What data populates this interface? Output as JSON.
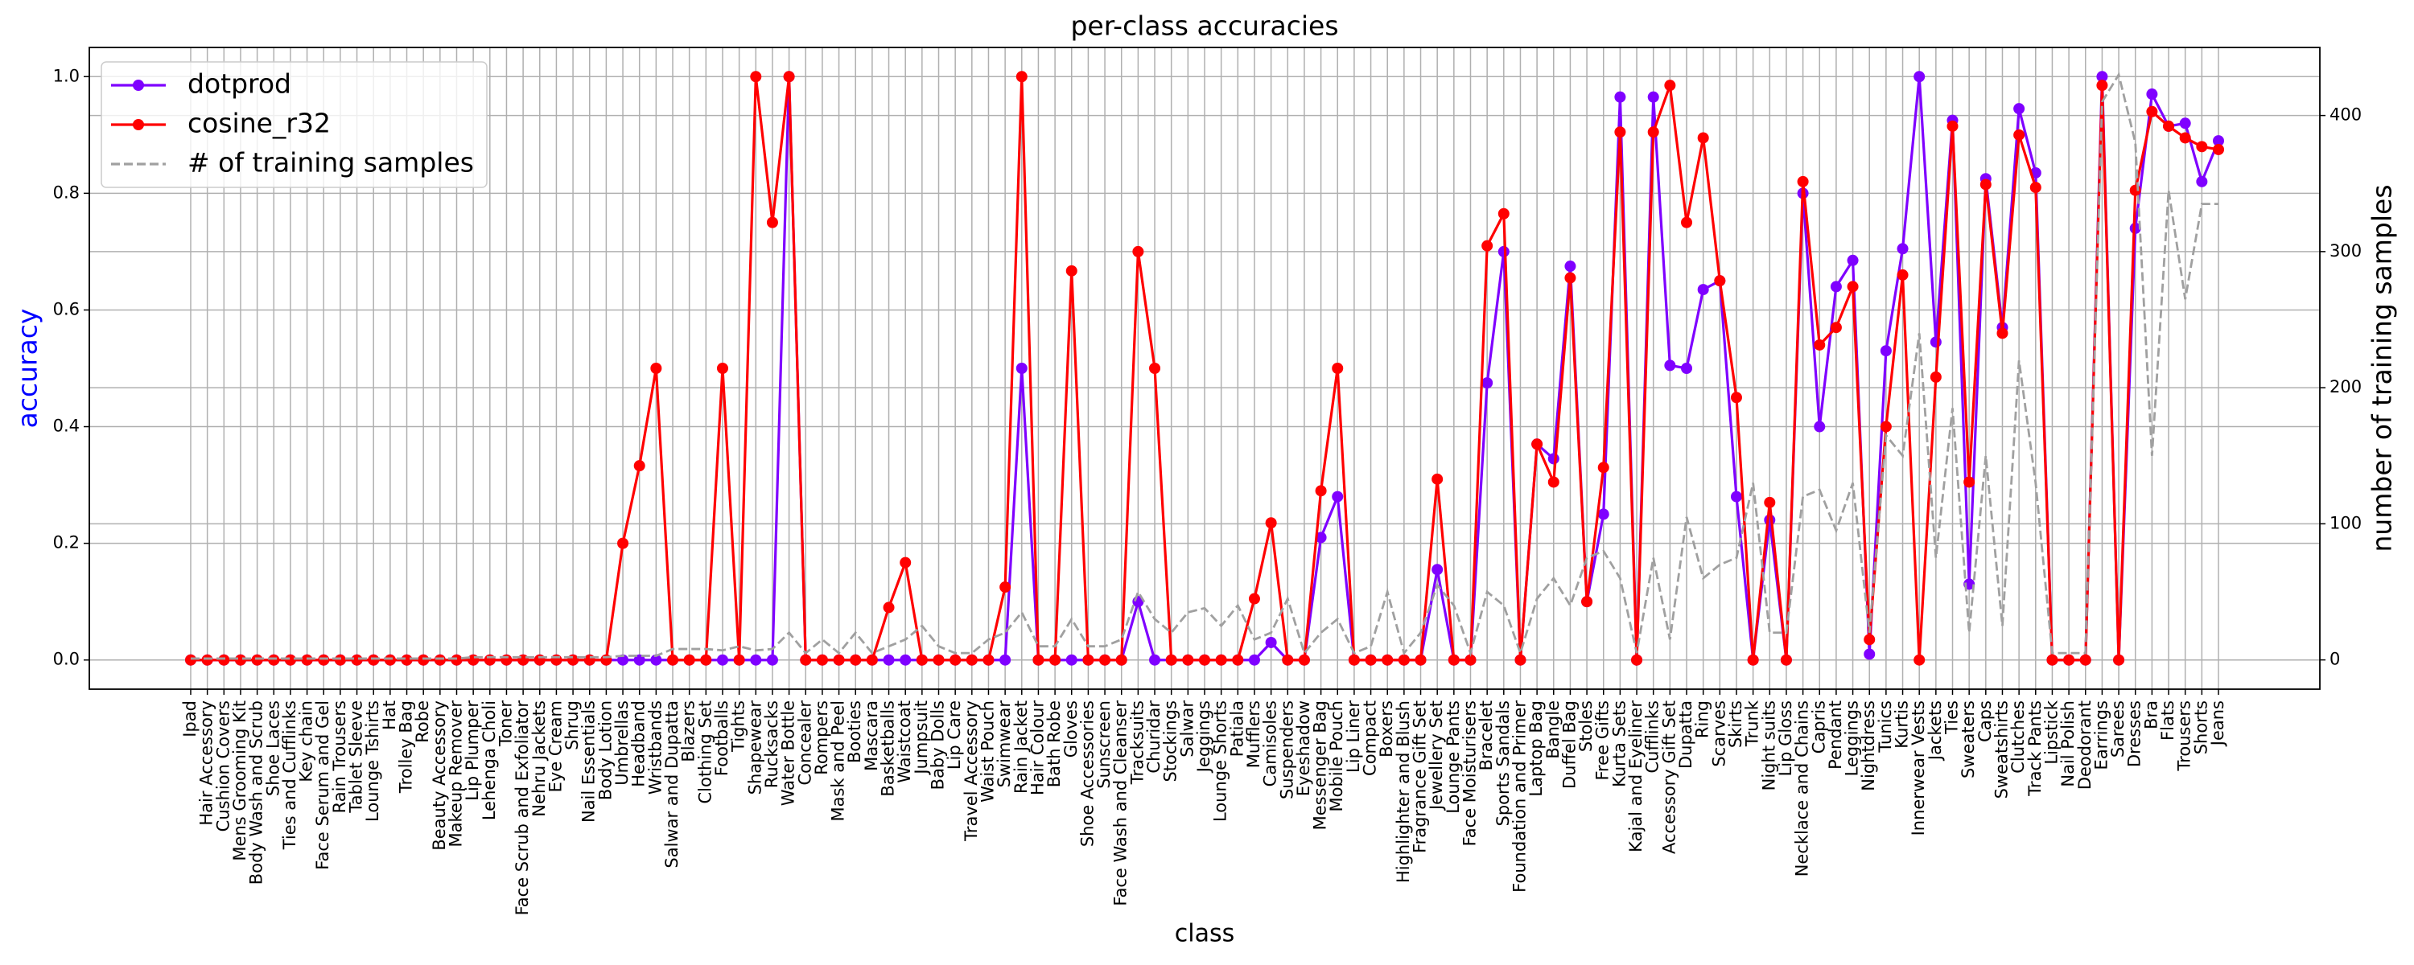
{
  "chart_data": {
    "type": "line",
    "title": "per-class accuracies",
    "xlabel": "class",
    "ylabel": "accuracy",
    "ylabel_color": "blue",
    "y2label": "number of training samples",
    "categories": [
      "Ipad",
      "Hair Accessory",
      "Cushion Covers",
      "Mens Grooming Kit",
      "Body Wash and Scrub",
      "Shoe Laces",
      "Ties and Cufflinks",
      "Key chain",
      "Face Serum and Gel",
      "Rain Trousers",
      "Tablet Sleeve",
      "Lounge Tshirts",
      "Hat",
      "Trolley Bag",
      "Robe",
      "Beauty Accessory",
      "Makeup Remover",
      "Lip Plumper",
      "Lehenga Choli",
      "Toner",
      "Face Scrub and Exfoliator",
      "Nehru Jackets",
      "Eye Cream",
      "Shrug",
      "Nail Essentials",
      "Body Lotion",
      "Umbrellas",
      "Headband",
      "Wristbands",
      "Salwar and Dupatta",
      "Blazers",
      "Clothing Set",
      "Footballs",
      "Tights",
      "Shapewear",
      "Rucksacks",
      "Water Bottle",
      "Concealer",
      "Rompers",
      "Mask and Peel",
      "Booties",
      "Mascara",
      "Basketballs",
      "Waistcoat",
      "Jumpsuit",
      "Baby Dolls",
      "Lip Care",
      "Travel Accessory",
      "Waist Pouch",
      "Swimwear",
      "Rain Jacket",
      "Hair Colour",
      "Bath Robe",
      "Gloves",
      "Shoe Accessories",
      "Sunscreen",
      "Face Wash and Cleanser",
      "Tracksuits",
      "Churidar",
      "Stockings",
      "Salwar",
      "Jeggings",
      "Lounge Shorts",
      "Patiala",
      "Mufflers",
      "Camisoles",
      "Suspenders",
      "Eyeshadow",
      "Messenger Bag",
      "Mobile Pouch",
      "Lip Liner",
      "Compact",
      "Boxers",
      "Highlighter and Blush",
      "Fragrance Gift Set",
      "Jewellery Set",
      "Lounge Pants",
      "Face Moisturisers",
      "Bracelet",
      "Sports Sandals",
      "Foundation and Primer",
      "Laptop Bag",
      "Bangle",
      "Duffel Bag",
      "Stoles",
      "Free Gifts",
      "Kurta Sets",
      "Kajal and Eyeliner",
      "Cufflinks",
      "Accessory Gift Set",
      "Dupatta",
      "Ring",
      "Scarves",
      "Skirts",
      "Trunk",
      "Night suits",
      "Lip Gloss",
      "Necklace and Chains",
      "Capris",
      "Pendant",
      "Leggings",
      "Nightdress",
      "Tunics",
      "Kurtis",
      "Innerwear Vests",
      "Jackets",
      "Ties",
      "Sweaters",
      "Caps",
      "Sweatshirts",
      "Clutches",
      "Track Pants",
      "Lipstick",
      "Nail Polish",
      "Deodorant",
      "Earrings",
      "Sarees",
      "Dresses",
      "Bra",
      "Flats",
      "Trousers",
      "Shorts",
      "Jeans"
    ],
    "series": [
      {
        "name": "dotprod",
        "color": "#7f00ff",
        "marker": "o",
        "linestyle": "solid",
        "axis": "y",
        "values": [
          0,
          0,
          0,
          0,
          0,
          0,
          0,
          0,
          0,
          0,
          0,
          0,
          0,
          0,
          0,
          0,
          0,
          0,
          0,
          0,
          0,
          0,
          0,
          0,
          0,
          0,
          0,
          0,
          0,
          0,
          0,
          0,
          0,
          0,
          0,
          0,
          1.0,
          0,
          0,
          0,
          0,
          0,
          0,
          0,
          0,
          0,
          0,
          0,
          0,
          0,
          0.5,
          0,
          0,
          0,
          0,
          0,
          0,
          0.1,
          0,
          0,
          0,
          0,
          0,
          0,
          0,
          0.03,
          0,
          0,
          0.21,
          0.28,
          0,
          0,
          0,
          0,
          0,
          0.155,
          0,
          0,
          0.475,
          0.7,
          0,
          0.37,
          0.345,
          0.675,
          0.1,
          0.25,
          0.965,
          0,
          0.965,
          0.505,
          0.5,
          0.635,
          0.65,
          0.28,
          0,
          0.24,
          0,
          0.8,
          0.4,
          0.64,
          0.685,
          0.01,
          0.53,
          0.705,
          1.0,
          0.545,
          0.925,
          0.13,
          0.825,
          0.57,
          0.945,
          0.835,
          0,
          0,
          0,
          1.0,
          0,
          0.74,
          0.97,
          0.915,
          0.92,
          0.82,
          0.89
        ]
      },
      {
        "name": "cosine_r32",
        "color": "#ff0000",
        "marker": "o",
        "linestyle": "solid",
        "axis": "y",
        "values": [
          0,
          0,
          0,
          0,
          0,
          0,
          0,
          0,
          0,
          0,
          0,
          0,
          0,
          0,
          0,
          0,
          0,
          0,
          0,
          0,
          0,
          0,
          0,
          0,
          0,
          0,
          0.2,
          0.333,
          0.5,
          0,
          0,
          0,
          0.5,
          0,
          1.0,
          0.75,
          1.0,
          0,
          0,
          0,
          0,
          0,
          0.09,
          0.167,
          0,
          0,
          0,
          0,
          0,
          0.125,
          1.0,
          0,
          0,
          0.667,
          0,
          0,
          0,
          0.7,
          0.5,
          0,
          0,
          0,
          0,
          0,
          0.105,
          0.235,
          0,
          0,
          0.29,
          0.5,
          0,
          0,
          0,
          0,
          0,
          0.31,
          0,
          0,
          0.71,
          0.765,
          0,
          0.37,
          0.305,
          0.655,
          0.1,
          0.33,
          0.905,
          0,
          0.905,
          0.985,
          0.75,
          0.895,
          0.65,
          0.45,
          0,
          0.27,
          0,
          0.82,
          0.54,
          0.57,
          0.64,
          0.035,
          0.4,
          0.66,
          0,
          0.485,
          0.915,
          0.305,
          0.815,
          0.56,
          0.9,
          0.81,
          0,
          0,
          0,
          0.985,
          0,
          0.805,
          0.94,
          0.915,
          0.895,
          0.88,
          0.875
        ]
      },
      {
        "name": "# of training samples",
        "color": "#a0a0a0",
        "marker": "none",
        "linestyle": "dashed",
        "axis": "y2",
        "values": [
          1,
          1,
          1,
          1,
          1,
          1,
          1,
          1,
          1,
          1,
          1,
          1,
          1,
          1,
          1,
          1,
          1,
          2,
          2,
          2,
          2,
          2,
          2,
          2,
          2,
          2,
          3,
          3,
          3,
          8,
          8,
          8,
          7,
          10,
          7,
          8,
          20,
          5,
          15,
          5,
          20,
          5,
          10,
          15,
          25,
          10,
          5,
          5,
          15,
          20,
          35,
          10,
          10,
          30,
          10,
          10,
          15,
          50,
          30,
          20,
          35,
          38,
          25,
          40,
          15,
          20,
          45,
          5,
          20,
          30,
          5,
          10,
          50,
          5,
          20,
          55,
          40,
          5,
          50,
          40,
          5,
          45,
          60,
          40,
          75,
          80,
          60,
          5,
          75,
          15,
          105,
          60,
          70,
          75,
          130,
          20,
          20,
          120,
          125,
          95,
          130,
          20,
          165,
          150,
          240,
          75,
          185,
          20,
          150,
          25,
          220,
          130,
          5,
          5,
          5,
          410,
          430,
          380,
          150,
          345,
          265,
          335,
          335
        ]
      }
    ],
    "ylim": [
      -0.05,
      1.05
    ],
    "yticks": [
      {
        "value": 0,
        "label": "0.0"
      },
      0.2,
      0.4,
      0.6,
      0.8,
      {
        "value": 1,
        "label": "1.0"
      }
    ],
    "y2lim": [
      -21.5,
      450
    ],
    "y2ticks": [
      0,
      100,
      200,
      300,
      400
    ],
    "grid": true,
    "legend": "upper left"
  }
}
